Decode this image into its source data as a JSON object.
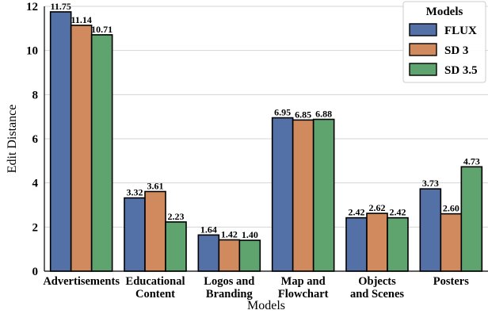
{
  "chart_data": {
    "type": "bar",
    "title": "",
    "xlabel": "Models",
    "ylabel": "Edit Distance",
    "ylim": [
      0,
      12
    ],
    "yticks": [
      0,
      2,
      4,
      6,
      8,
      10,
      12
    ],
    "grid": "horizontal",
    "legend": {
      "title": "Models",
      "placement": "top-right"
    },
    "categories": [
      [
        "Advertisements"
      ],
      [
        "Educational",
        "Content"
      ],
      [
        "Logos and",
        "Branding"
      ],
      [
        "Map and",
        "Flowchart"
      ],
      [
        "Objects",
        "and Scenes"
      ],
      [
        "Posters"
      ]
    ],
    "series": [
      {
        "name": "FLUX",
        "color": "#5471a7",
        "values": [
          11.75,
          3.32,
          1.64,
          6.95,
          2.42,
          3.73
        ],
        "labels": [
          "11.75",
          "3.32",
          "1.64",
          "6.95",
          "2.42",
          "3.73"
        ]
      },
      {
        "name": "SD 3",
        "color": "#d18a5d",
        "values": [
          11.14,
          3.61,
          1.42,
          6.85,
          2.62,
          2.6
        ],
        "labels": [
          "11.14",
          "3.61",
          "1.42",
          "6.85",
          "2.62",
          "2.60"
        ]
      },
      {
        "name": "SD 3.5",
        "color": "#5fa36f",
        "values": [
          10.71,
          2.23,
          1.4,
          6.88,
          2.42,
          4.73
        ],
        "labels": [
          "10.71",
          "2.23",
          "1.40",
          "6.88",
          "2.42",
          "4.73"
        ]
      }
    ]
  }
}
